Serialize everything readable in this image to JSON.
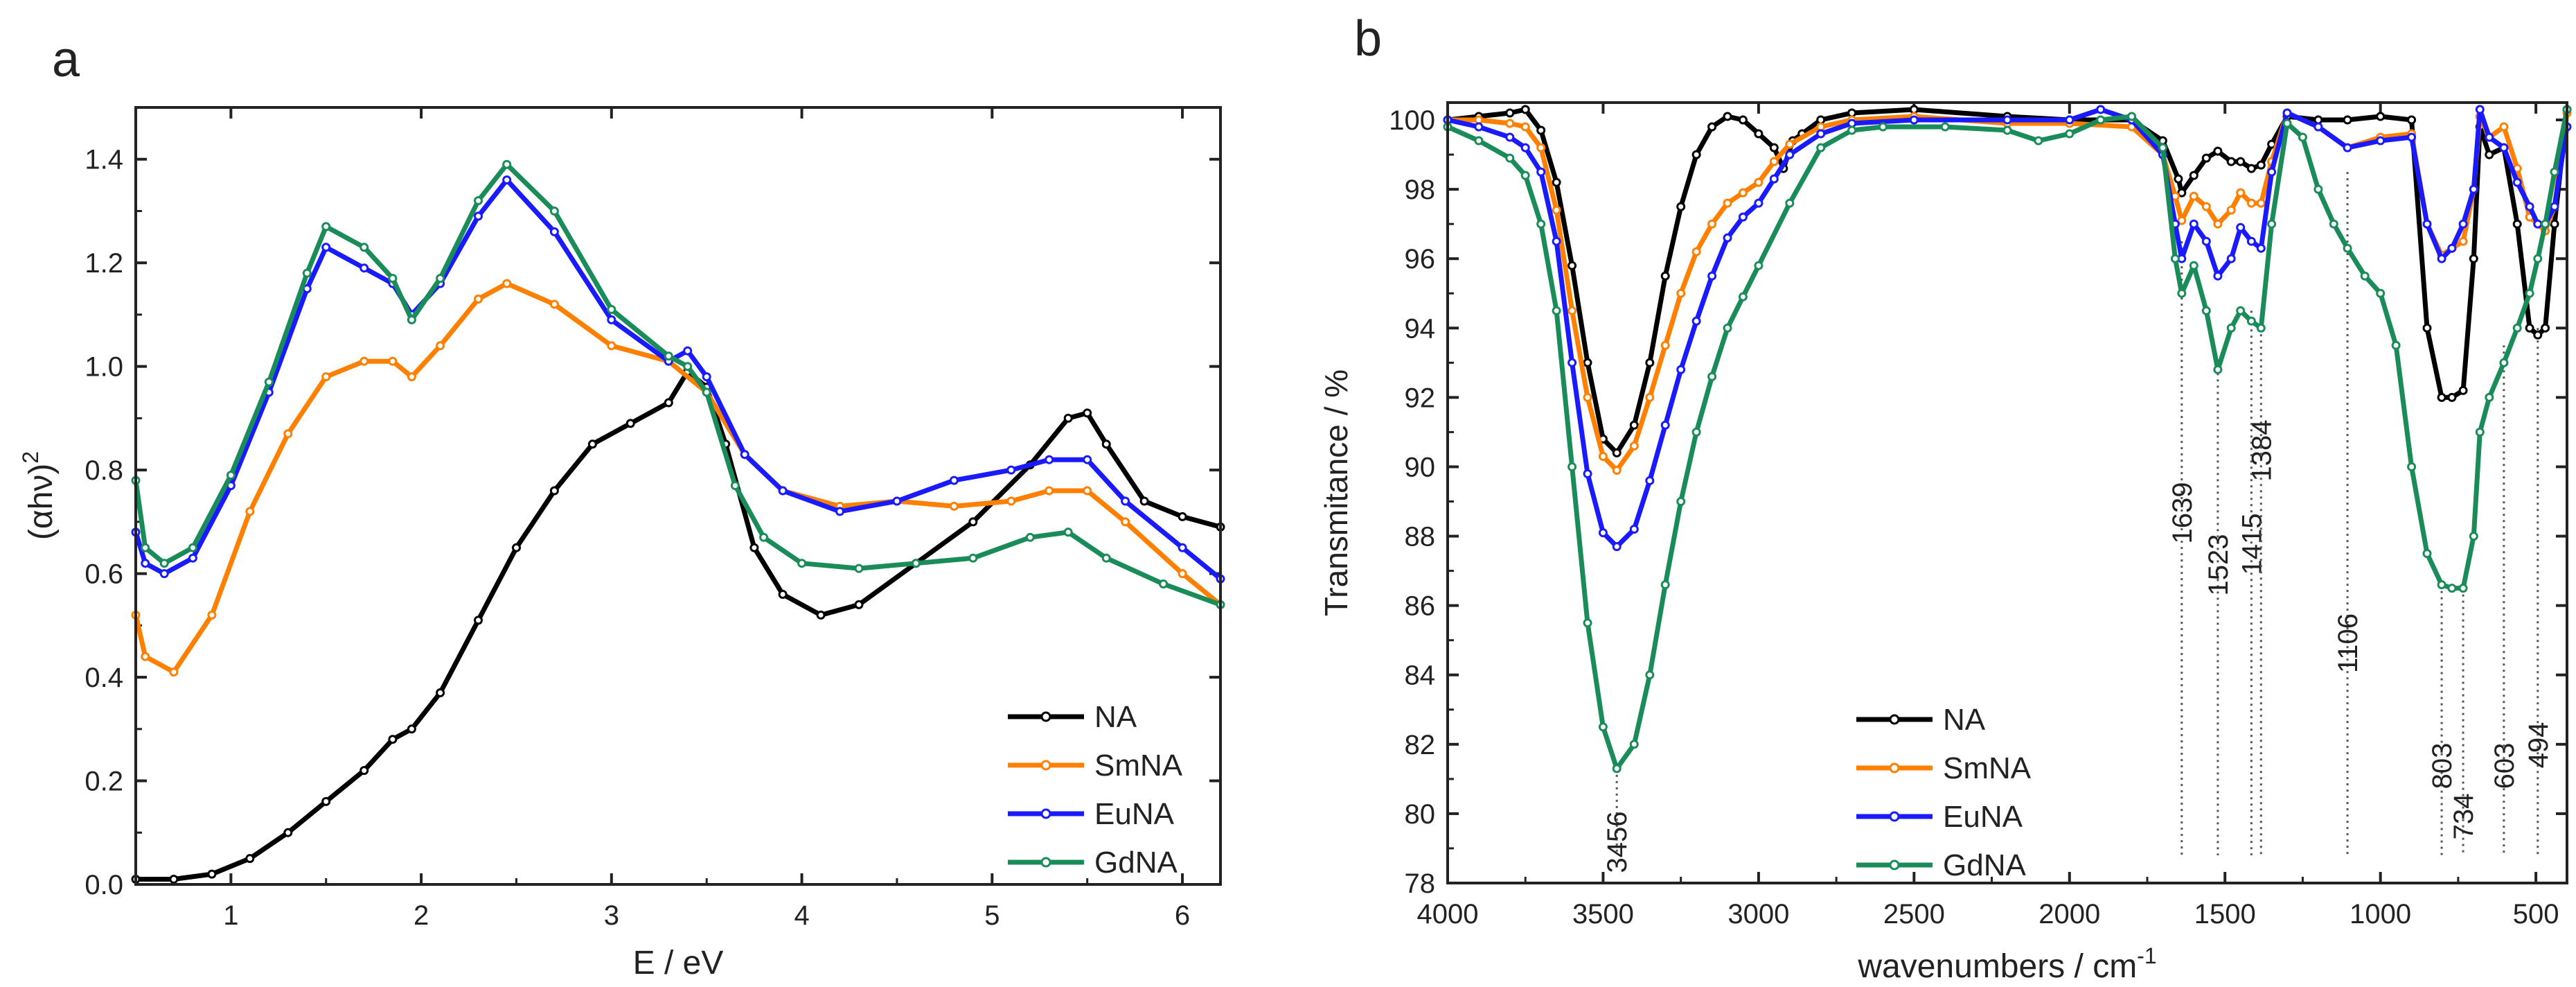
{
  "chart_data": [
    {
      "type": "line",
      "panel_label": "a",
      "xlabel": "E / eV",
      "ylabel": "(αhν)",
      "ylabel_sup": "2",
      "xlim": [
        0.5,
        6.2
      ],
      "ylim": [
        0.0,
        1.5
      ],
      "xticks": [
        1,
        2,
        3,
        4,
        5,
        6
      ],
      "yticks": [
        0.0,
        0.2,
        0.4,
        0.6,
        0.8,
        1.0,
        1.2,
        1.4
      ],
      "ytick_labels": [
        "0.0",
        "0.2",
        "0.4",
        "0.6",
        "0.8",
        "1.0",
        "1.2",
        "1.4"
      ],
      "legend_position": "bottom-right",
      "series": [
        {
          "name": "NA",
          "color": "#000000",
          "x": [
            0.5,
            0.7,
            0.9,
            1.1,
            1.3,
            1.5,
            1.7,
            1.85,
            1.95,
            2.1,
            2.3,
            2.5,
            2.7,
            2.9,
            3.1,
            3.3,
            3.4,
            3.5,
            3.6,
            3.75,
            3.9,
            4.1,
            4.3,
            4.6,
            4.9,
            5.2,
            5.4,
            5.5,
            5.6,
            5.8,
            6.0,
            6.2
          ],
          "values": [
            0.01,
            0.01,
            0.02,
            0.05,
            0.1,
            0.16,
            0.22,
            0.28,
            0.3,
            0.37,
            0.51,
            0.65,
            0.76,
            0.85,
            0.89,
            0.93,
            0.99,
            0.96,
            0.85,
            0.65,
            0.56,
            0.52,
            0.54,
            0.62,
            0.7,
            0.81,
            0.9,
            0.91,
            0.85,
            0.74,
            0.71,
            0.69
          ]
        },
        {
          "name": "SmNA",
          "color": "#ff8000",
          "x": [
            0.5,
            0.55,
            0.7,
            0.9,
            1.1,
            1.3,
            1.5,
            1.7,
            1.85,
            1.95,
            2.1,
            2.3,
            2.45,
            2.7,
            3.0,
            3.3,
            3.5,
            3.7,
            3.9,
            4.2,
            4.5,
            4.8,
            5.1,
            5.3,
            5.5,
            5.7,
            6.0,
            6.2
          ],
          "values": [
            0.52,
            0.44,
            0.41,
            0.52,
            0.72,
            0.87,
            0.98,
            1.01,
            1.01,
            0.98,
            1.04,
            1.13,
            1.16,
            1.12,
            1.04,
            1.01,
            0.95,
            0.83,
            0.76,
            0.73,
            0.74,
            0.73,
            0.74,
            0.76,
            0.76,
            0.7,
            0.6,
            0.54
          ]
        },
        {
          "name": "EuNA",
          "color": "#1a1aff",
          "x": [
            0.5,
            0.55,
            0.65,
            0.8,
            1.0,
            1.2,
            1.4,
            1.5,
            1.7,
            1.85,
            1.95,
            2.1,
            2.3,
            2.45,
            2.7,
            3.0,
            3.3,
            3.4,
            3.5,
            3.7,
            3.9,
            4.2,
            4.5,
            4.8,
            5.1,
            5.3,
            5.5,
            5.7,
            6.0,
            6.2
          ],
          "values": [
            0.68,
            0.62,
            0.6,
            0.63,
            0.77,
            0.95,
            1.15,
            1.23,
            1.19,
            1.16,
            1.1,
            1.16,
            1.29,
            1.36,
            1.26,
            1.09,
            1.01,
            1.03,
            0.98,
            0.83,
            0.76,
            0.72,
            0.74,
            0.78,
            0.8,
            0.82,
            0.82,
            0.74,
            0.65,
            0.59
          ]
        },
        {
          "name": "GdNA",
          "color": "#1a8c5a",
          "x": [
            0.5,
            0.55,
            0.65,
            0.8,
            1.0,
            1.2,
            1.4,
            1.5,
            1.7,
            1.85,
            1.95,
            2.1,
            2.3,
            2.45,
            2.7,
            3.0,
            3.3,
            3.4,
            3.5,
            3.65,
            3.8,
            4.0,
            4.3,
            4.6,
            4.9,
            5.2,
            5.4,
            5.6,
            5.9,
            6.2
          ],
          "values": [
            0.78,
            0.65,
            0.62,
            0.65,
            0.79,
            0.97,
            1.18,
            1.27,
            1.23,
            1.17,
            1.09,
            1.17,
            1.32,
            1.39,
            1.3,
            1.11,
            1.02,
            1.0,
            0.95,
            0.77,
            0.67,
            0.62,
            0.61,
            0.62,
            0.63,
            0.67,
            0.68,
            0.63,
            0.58,
            0.54
          ]
        }
      ]
    },
    {
      "type": "line",
      "panel_label": "b",
      "xlabel": "wavenumbers / cm",
      "xlabel_sup": "-1",
      "ylabel": "Transmitance / %",
      "xlim": [
        4000,
        400
      ],
      "ylim": [
        78,
        100.5
      ],
      "xticks": [
        4000,
        3500,
        3000,
        2500,
        2000,
        1500,
        1000,
        500
      ],
      "yticks": [
        78,
        80,
        82,
        84,
        86,
        88,
        90,
        92,
        94,
        96,
        98,
        100
      ],
      "legend_position": "bottom-center",
      "annotations": [
        {
          "label": "3456",
          "x": 3456,
          "y": 81.3
        },
        {
          "label": "1639",
          "x": 1639,
          "y": 96.5
        },
        {
          "label": "1523",
          "x": 1523,
          "y": 92.7
        },
        {
          "label": "1415",
          "x": 1415,
          "y": 94.5
        },
        {
          "label": "1384",
          "x": 1384,
          "y": 94.0
        },
        {
          "label": "1106",
          "x": 1106,
          "y": 98.5
        },
        {
          "label": "803",
          "x": 803,
          "y": 86.6
        },
        {
          "label": "734",
          "x": 734,
          "y": 86.5
        },
        {
          "label": "603",
          "x": 603,
          "y": 93.5
        },
        {
          "label": "494",
          "x": 494,
          "y": 94.0
        }
      ],
      "series": [
        {
          "name": "NA",
          "color": "#000000",
          "x": [
            4000,
            3900,
            3800,
            3750,
            3700,
            3650,
            3600,
            3550,
            3500,
            3456,
            3400,
            3350,
            3300,
            3250,
            3200,
            3150,
            3100,
            3050,
            3000,
            2950,
            2920,
            2890,
            2860,
            2800,
            2700,
            2500,
            2200,
            2000,
            1800,
            1700,
            1650,
            1639,
            1600,
            1560,
            1523,
            1480,
            1450,
            1415,
            1384,
            1350,
            1300,
            1200,
            1106,
            1000,
            900,
            850,
            803,
            770,
            734,
            700,
            680,
            650,
            603,
            560,
            520,
            494,
            470,
            440,
            400
          ],
          "values": [
            100,
            100.1,
            100.2,
            100.3,
            99.7,
            98.2,
            95.8,
            93.0,
            90.8,
            90.4,
            91.2,
            93.0,
            95.5,
            97.5,
            99.0,
            99.8,
            100.1,
            100.0,
            99.6,
            99.2,
            98.6,
            99.4,
            99.6,
            100.0,
            100.2,
            100.3,
            100.1,
            100.0,
            100.0,
            99.4,
            98.3,
            97.9,
            98.4,
            98.9,
            99.1,
            98.8,
            98.8,
            98.6,
            98.7,
            99.3,
            100.1,
            100.0,
            100.0,
            100.1,
            100.0,
            94.0,
            92.0,
            92.0,
            92.2,
            96.0,
            99.8,
            99.0,
            99.2,
            97.0,
            94.0,
            93.8,
            94.0,
            97.0,
            100.3
          ]
        },
        {
          "name": "SmNA",
          "color": "#ff8000",
          "x": [
            4000,
            3900,
            3800,
            3750,
            3700,
            3650,
            3600,
            3550,
            3500,
            3456,
            3400,
            3350,
            3300,
            3250,
            3200,
            3150,
            3100,
            3050,
            3000,
            2950,
            2900,
            2800,
            2700,
            2500,
            2200,
            2000,
            1800,
            1700,
            1660,
            1639,
            1600,
            1560,
            1523,
            1480,
            1450,
            1415,
            1384,
            1350,
            1300,
            1200,
            1106,
            1000,
            900,
            850,
            803,
            770,
            734,
            700,
            680,
            650,
            603,
            560,
            520,
            494,
            470,
            440,
            400
          ],
          "values": [
            100,
            100,
            99.9,
            99.8,
            99.2,
            97.4,
            94.5,
            92.0,
            90.3,
            89.9,
            90.6,
            92.0,
            93.5,
            95.0,
            96.2,
            97.0,
            97.6,
            97.9,
            98.2,
            98.8,
            99.3,
            99.8,
            100.0,
            100.1,
            99.9,
            99.9,
            99.8,
            99.0,
            97.8,
            97.1,
            97.8,
            97.5,
            97.0,
            97.4,
            97.9,
            97.6,
            97.6,
            98.8,
            100.2,
            99.8,
            99.2,
            99.5,
            99.6,
            97.0,
            96.1,
            96.3,
            96.5,
            98.0,
            100.1,
            99.5,
            99.8,
            98.6,
            97.2,
            97.0,
            96.8,
            97.5,
            100.2
          ]
        },
        {
          "name": "EuNA",
          "color": "#1a1aff",
          "x": [
            4000,
            3900,
            3800,
            3750,
            3700,
            3650,
            3600,
            3550,
            3500,
            3456,
            3400,
            3350,
            3300,
            3250,
            3200,
            3150,
            3100,
            3050,
            3000,
            2950,
            2900,
            2800,
            2700,
            2500,
            2200,
            2000,
            1900,
            1800,
            1700,
            1660,
            1639,
            1600,
            1560,
            1523,
            1480,
            1450,
            1415,
            1384,
            1350,
            1300,
            1200,
            1106,
            1000,
            900,
            850,
            803,
            770,
            734,
            700,
            680,
            650,
            603,
            560,
            520,
            494,
            470,
            440,
            400
          ],
          "values": [
            100,
            99.8,
            99.5,
            99.2,
            98.5,
            96.5,
            93.0,
            89.8,
            88.1,
            87.7,
            88.2,
            89.6,
            91.2,
            92.8,
            94.2,
            95.5,
            96.6,
            97.2,
            97.6,
            98.3,
            99.0,
            99.6,
            99.9,
            100.0,
            100.0,
            100.0,
            100.3,
            100.0,
            99.0,
            97.0,
            96.0,
            97.0,
            96.5,
            95.5,
            96.0,
            96.9,
            96.5,
            96.3,
            98.5,
            100.2,
            99.8,
            99.2,
            99.4,
            99.5,
            97.0,
            96.0,
            96.3,
            97.0,
            98.0,
            100.3,
            99.5,
            99.2,
            98.2,
            97.5,
            97.0,
            97.0,
            97.5,
            99.8
          ]
        },
        {
          "name": "GdNA",
          "color": "#1a8c5a",
          "x": [
            4000,
            3900,
            3800,
            3750,
            3700,
            3650,
            3600,
            3550,
            3500,
            3456,
            3400,
            3350,
            3300,
            3250,
            3200,
            3150,
            3100,
            3050,
            3000,
            2900,
            2800,
            2700,
            2600,
            2400,
            2200,
            2100,
            2000,
            1900,
            1800,
            1700,
            1660,
            1639,
            1600,
            1560,
            1523,
            1480,
            1450,
            1415,
            1384,
            1350,
            1300,
            1250,
            1200,
            1150,
            1106,
            1050,
            1000,
            950,
            900,
            850,
            803,
            770,
            734,
            700,
            680,
            650,
            603,
            560,
            520,
            494,
            470,
            440,
            400
          ],
          "values": [
            99.8,
            99.4,
            98.9,
            98.4,
            97.0,
            94.5,
            90.0,
            85.5,
            82.5,
            81.3,
            82.0,
            84.0,
            86.6,
            89.0,
            91.0,
            92.6,
            94.0,
            94.9,
            95.8,
            97.6,
            99.2,
            99.7,
            99.8,
            99.8,
            99.7,
            99.4,
            99.6,
            100.0,
            100.1,
            99.2,
            96.0,
            95.0,
            95.8,
            94.5,
            92.8,
            94.0,
            94.5,
            94.2,
            94.0,
            97.0,
            99.9,
            99.5,
            98.0,
            97.0,
            96.3,
            95.5,
            95.0,
            93.5,
            90.0,
            87.5,
            86.6,
            86.5,
            86.5,
            88.0,
            91.0,
            92.0,
            93.0,
            94.0,
            95.0,
            96.0,
            97.0,
            98.5,
            100.3
          ]
        }
      ]
    }
  ]
}
